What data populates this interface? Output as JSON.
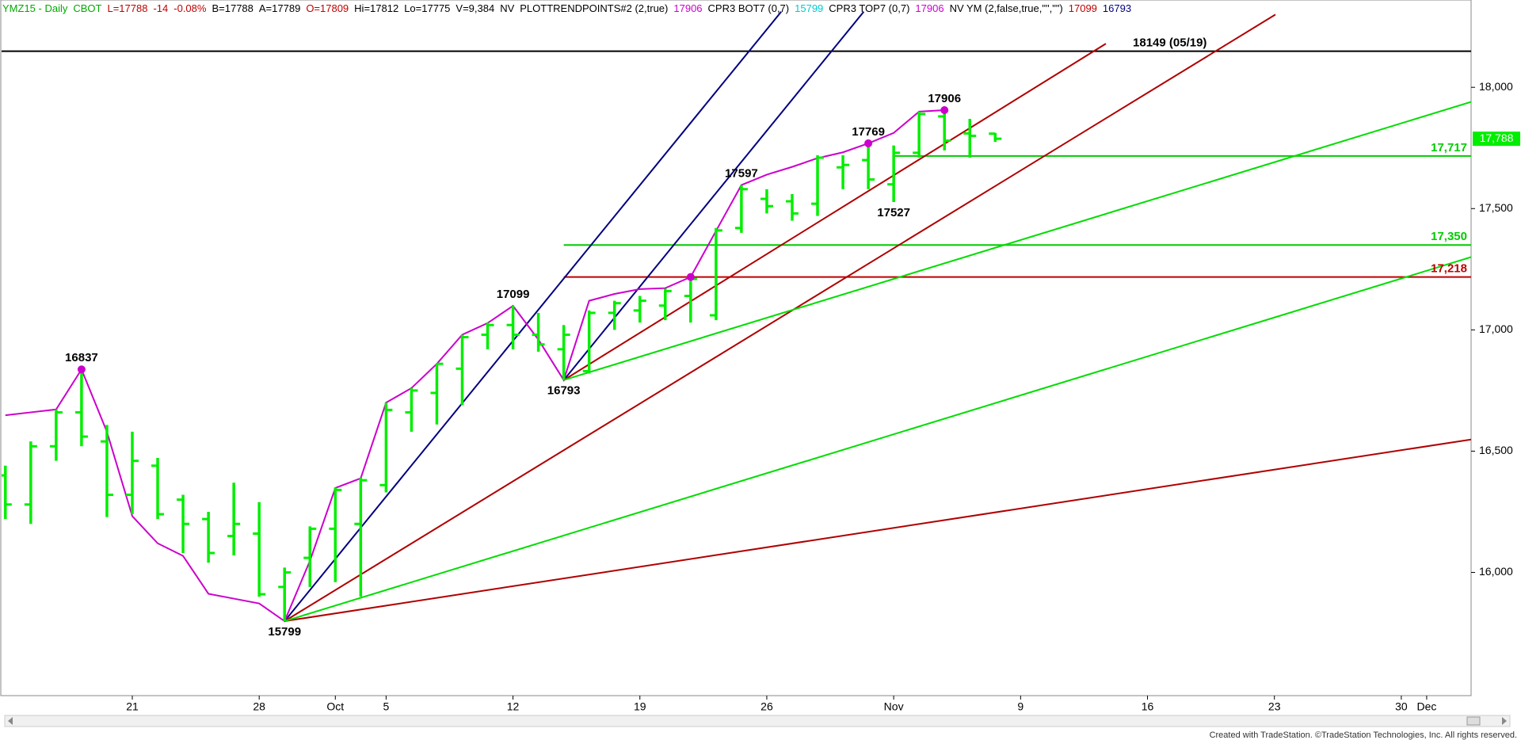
{
  "chart_data": {
    "type": "ohlc",
    "header": [
      {
        "text": "YMZ15 - Daily",
        "color": "#00aa00"
      },
      {
        "text": "CBOT",
        "color": "#00aa00"
      },
      {
        "text": "L=17788",
        "color": "#c00000"
      },
      {
        "text": "-14",
        "color": "#c00000"
      },
      {
        "text": "-0.08%",
        "color": "#c00000"
      },
      {
        "text": "B=17788",
        "color": "#000000"
      },
      {
        "text": "A=17789",
        "color": "#000000"
      },
      {
        "text": "O=17809",
        "color": "#c00000"
      },
      {
        "text": "Hi=17812",
        "color": "#000000"
      },
      {
        "text": "Lo=17775",
        "color": "#000000"
      },
      {
        "text": "V=9,384",
        "color": "#000000"
      },
      {
        "text": "NV",
        "color": "#000000"
      },
      {
        "text": "PLOTTRENDPOINTS#2 (2,true)",
        "color": "#000000"
      },
      {
        "text": "17906",
        "color": "#cc00cc"
      },
      {
        "text": "CPR3 BOT7 (0,7)",
        "color": "#000000"
      },
      {
        "text": "15799",
        "color": "#00cccc"
      },
      {
        "text": "CPR3 TOP7 (0,7)",
        "color": "#000000"
      },
      {
        "text": "17906",
        "color": "#cc00cc"
      },
      {
        "text": "NV YM (2,false,true,\"\",\"\")",
        "color": "#000000"
      },
      {
        "text": "17099",
        "color": "#c00000"
      },
      {
        "text": "16793",
        "color": "#000080"
      }
    ],
    "footer": "Created with TradeStation. ©TradeStation Technologies, Inc. All rights reserved.",
    "color": "#00ee00",
    "x": [
      -5,
      -4,
      -3,
      -2,
      -1,
      0,
      1,
      2,
      3,
      4,
      5,
      6,
      7,
      8,
      9,
      10,
      11,
      12,
      13,
      14,
      15,
      16,
      17,
      18,
      19,
      20,
      21,
      22,
      23,
      24,
      25,
      26,
      27,
      28,
      29,
      30,
      31,
      32,
      33,
      34
    ],
    "open": [
      16400,
      16280,
      16520,
      16660,
      16540,
      16320,
      16440,
      16300,
      16220,
      16150,
      16160,
      15940,
      16060,
      16180,
      16200,
      16360,
      16660,
      16740,
      16840,
      16980,
      17020,
      16980,
      16920,
      16830,
      17070,
      17080,
      17100,
      17140,
      17060,
      17420,
      17540,
      17530,
      17520,
      17670,
      17700,
      17600,
      17730,
      17880,
      17810,
      17809
    ],
    "high": [
      16440,
      16540,
      16672,
      16837,
      16608,
      16580,
      16472,
      16320,
      16250,
      16370,
      16290,
      16020,
      16190,
      16350,
      16390,
      16700,
      16760,
      16860,
      16980,
      17030,
      17099,
      17070,
      17020,
      17080,
      17120,
      17140,
      17170,
      17220,
      17420,
      17597,
      17580,
      17560,
      17720,
      17720,
      17769,
      17760,
      17900,
      17906,
      17870,
      17812
    ],
    "low": [
      16220,
      16200,
      16460,
      16520,
      16228,
      16240,
      16220,
      16080,
      16040,
      16070,
      15900,
      15799,
      15940,
      15960,
      15900,
      16330,
      16580,
      16610,
      16690,
      16920,
      16920,
      16910,
      16793,
      16820,
      17000,
      17030,
      17040,
      17030,
      17040,
      17400,
      17480,
      17450,
      17470,
      17580,
      17580,
      17527,
      17710,
      17740,
      17710,
      17775
    ],
    "close": [
      16280,
      16520,
      16660,
      16560,
      16320,
      16460,
      16240,
      16200,
      16080,
      16200,
      15910,
      16000,
      16180,
      16340,
      16380,
      16670,
      16750,
      16860,
      16970,
      17020,
      16980,
      16940,
      16980,
      17070,
      17110,
      17120,
      17160,
      17210,
      17410,
      17580,
      17510,
      17480,
      17710,
      17680,
      17620,
      17730,
      17890,
      17780,
      17800,
      17788
    ],
    "swing": {
      "color": "#cc00cc",
      "x": [
        -5,
        -4,
        -3,
        -2,
        -1,
        0,
        1,
        2,
        3,
        4,
        5,
        6,
        7,
        8,
        9,
        10,
        11,
        12,
        13,
        14,
        15,
        16,
        17,
        18,
        19,
        20,
        21,
        22,
        23,
        24,
        25,
        26,
        27,
        28,
        29,
        30,
        31,
        32
      ],
      "values": [
        16648,
        16660,
        16672,
        16837,
        16580,
        16232,
        16120,
        16068,
        15912,
        15892,
        15872,
        15799,
        16048,
        16348,
        16388,
        16700,
        16760,
        16860,
        16980,
        17028,
        17099,
        16960,
        16793,
        17120,
        17148,
        17168,
        17172,
        17218,
        17408,
        17597,
        17640,
        17672,
        17708,
        17732,
        17769,
        17812,
        17900,
        17906
      ],
      "dots_x": [
        -2,
        22,
        29,
        32
      ],
      "dots_y": [
        16837,
        17218,
        17769,
        17906
      ]
    },
    "annotations": [
      {
        "value": 16837,
        "x": -2,
        "position": "above"
      },
      {
        "value": 15799,
        "x": 6,
        "position": "below"
      },
      {
        "value": 17099,
        "x": 15,
        "position": "above"
      },
      {
        "value": 16793,
        "x": 17,
        "position": "below"
      },
      {
        "value": 17597,
        "x": 24,
        "position": "above"
      },
      {
        "value": 17769,
        "x": 29,
        "position": "above"
      },
      {
        "value": 17527,
        "x": 30,
        "position": "below"
      },
      {
        "value": 17906,
        "x": 32,
        "position": "above"
      }
    ],
    "trendlines": [
      {
        "color": "#000080",
        "x": [
          6,
          25.57
        ],
        "y": [
          15799,
          18312
        ]
      },
      {
        "color": "#000080",
        "x": [
          17,
          28.82
        ],
        "y": [
          16793,
          18312
        ]
      },
      {
        "color": "#b00000",
        "x": [
          17,
          38.36
        ],
        "y": [
          16793,
          18180
        ]
      },
      {
        "color": "#b00000",
        "x": [
          6,
          45.04
        ],
        "y": [
          15799,
          18300
        ]
      },
      {
        "color": "#b00000",
        "x": [
          6,
          52.75
        ],
        "y": [
          15799,
          16548
        ]
      },
      {
        "color": "#00dd00",
        "x": [
          17,
          52.75
        ],
        "y": [
          16793,
          17940
        ]
      },
      {
        "color": "#00dd00",
        "x": [
          6,
          52.75
        ],
        "y": [
          15799,
          17300
        ]
      }
    ],
    "levels": [
      {
        "value": 18149,
        "label": "18149 (05/19)",
        "color": "#000000"
      },
      {
        "value": 17717,
        "label": "17,717",
        "color": "#00cc00",
        "start": 30
      },
      {
        "value": 17350,
        "label": "17,350",
        "color": "#00cc00",
        "start": 17
      },
      {
        "value": 17218,
        "label": "17,218",
        "color": "#c00000",
        "start": 17
      }
    ],
    "last_price": {
      "value": 17788,
      "label": "17,788",
      "color": "#00ee00"
    },
    "xlim": [
      -5.15,
      52.75
    ],
    "xticks": [
      {
        "value": 0,
        "label": "21"
      },
      {
        "value": 5,
        "label": "28"
      },
      {
        "value": 8,
        "label": "Oct"
      },
      {
        "value": 10,
        "label": "5"
      },
      {
        "value": 15,
        "label": "12"
      },
      {
        "value": 20,
        "label": "19"
      },
      {
        "value": 25,
        "label": "26"
      },
      {
        "value": 30,
        "label": "Nov"
      },
      {
        "value": 35,
        "label": "9"
      },
      {
        "value": 40,
        "label": "16"
      },
      {
        "value": 45,
        "label": "23"
      },
      {
        "value": 50,
        "label": "30"
      },
      {
        "value": 51,
        "label": "Dec"
      }
    ],
    "ylim": [
      15492,
      18360
    ],
    "yticks": [
      {
        "value": 16000,
        "label": "16,000"
      },
      {
        "value": 16500,
        "label": "16,500"
      },
      {
        "value": 17000,
        "label": "17,000"
      },
      {
        "value": 17500,
        "label": "17,500"
      },
      {
        "value": 18000,
        "label": "18,000"
      }
    ]
  }
}
